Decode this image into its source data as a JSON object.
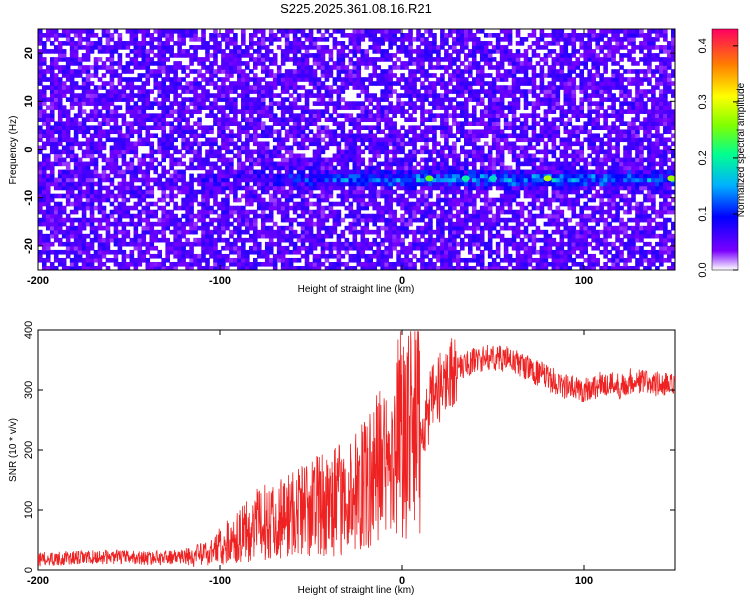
{
  "title": "S225.2025.361.08.16.R21",
  "chart_data": [
    {
      "type": "heatmap",
      "xlabel": "Height of straight line (km)",
      "ylabel": "Frequency (Hz)",
      "xlim": [
        -200,
        150
      ],
      "ylim": [
        -25,
        25
      ],
      "xticks": [
        -200,
        -100,
        0,
        100
      ],
      "yticks": [
        -20,
        -10,
        0,
        10,
        20
      ],
      "colorbar": {
        "label": "Normalized spectral amplitude",
        "range": [
          0,
          0.43
        ],
        "ticks": [
          "0.0",
          "0.1",
          "0.2",
          "0.3",
          "0.4"
        ],
        "colors": [
          "#ffffff",
          "#7a00ff",
          "#0000ff",
          "#00c0ff",
          "#00ff90",
          "#80ff00",
          "#ffff00",
          "#ff8000",
          "#ff0060"
        ]
      },
      "signal_band": {
        "frequency_hz": -6,
        "x_range": [
          -120,
          150
        ],
        "peak_values": [
          {
            "x": 15,
            "amp": 0.25
          },
          {
            "x": 80,
            "amp": 0.28
          },
          {
            "x": 148,
            "amp": 0.27
          },
          {
            "x": 35,
            "amp": 0.2
          },
          {
            "x": 50,
            "amp": 0.18
          }
        ]
      },
      "background_noise_level": 0.05,
      "ytick_labels": [
        "-20",
        "-10",
        "0",
        "10",
        "20"
      ],
      "xtick_labels": [
        "-200",
        "-100",
        "0",
        "100"
      ]
    },
    {
      "type": "line",
      "xlabel": "Height of straight line (km)",
      "ylabel": "SNR (10 * v/v)",
      "xlim": [
        -200,
        150
      ],
      "ylim": [
        0,
        400
      ],
      "xticks": [
        -200,
        -100,
        0,
        100
      ],
      "yticks": [
        0,
        100,
        200,
        300,
        400
      ],
      "ytick_labels": [
        "0",
        "100",
        "200",
        "300",
        "400"
      ],
      "xtick_labels": [
        "-200",
        "-100",
        "0",
        "100"
      ],
      "color": "#ee2222",
      "series": [
        {
          "x": [
            -200,
            -180,
            -160,
            -140,
            -120,
            -110,
            -100,
            -90,
            -80,
            -70,
            -60,
            -50,
            -40,
            -30,
            -20,
            -15,
            -10,
            -7,
            -5,
            -2,
            0,
            5,
            10,
            15,
            20,
            25,
            30,
            40,
            50,
            60,
            70,
            80,
            90,
            100,
            110,
            118,
            120,
            125,
            130,
            140,
            150
          ],
          "y": [
            18,
            20,
            22,
            20,
            22,
            25,
            40,
            55,
            75,
            85,
            95,
            105,
            110,
            120,
            140,
            160,
            180,
            170,
            190,
            230,
            250,
            240,
            230,
            270,
            300,
            325,
            335,
            350,
            355,
            350,
            335,
            320,
            305,
            300,
            310,
            310,
            305,
            315,
            315,
            310,
            305
          ]
        }
      ]
    }
  ]
}
